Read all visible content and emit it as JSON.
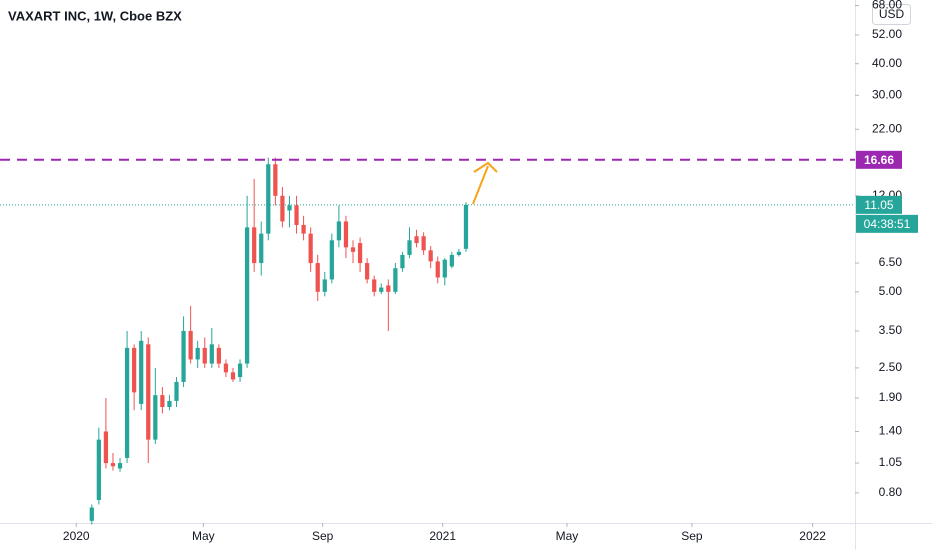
{
  "chart_data": {
    "type": "candlestick",
    "title": "VAXART INC, 1W, Cboe BZX",
    "currency": "USD",
    "log_scale": true,
    "grid": false,
    "up_color": "#26a69a",
    "down_color": "#ef5350",
    "x": [
      0,
      1,
      2,
      3,
      4,
      5,
      6,
      7,
      8,
      9,
      10,
      11,
      12,
      13,
      14,
      15,
      16,
      17,
      18,
      19,
      20,
      21,
      22,
      23,
      24,
      25,
      26,
      27,
      28,
      29,
      30,
      31,
      32,
      33,
      34,
      35,
      36,
      37,
      38,
      39,
      40,
      41,
      42,
      43,
      44,
      45,
      46,
      47,
      48,
      49,
      50,
      51,
      52,
      53
    ],
    "open": [
      0.62,
      0.75,
      1.4,
      1.05,
      1.0,
      1.1,
      3.0,
      1.8,
      3.1,
      1.3,
      1.95,
      1.75,
      1.85,
      2.2,
      3.5,
      2.7,
      3.0,
      2.6,
      3.0,
      2.6,
      2.4,
      2.3,
      2.6,
      9.0,
      6.5,
      8.5,
      16,
      12,
      10.5,
      11,
      9.2,
      8.5,
      6.5,
      5.0,
      5.6,
      8.0,
      9.5,
      7.5,
      7.8,
      6.5,
      5.6,
      5.0,
      5.3,
      5.0,
      6.2,
      7.0,
      8.3,
      8.3,
      7.3,
      6.6,
      5.7,
      6.3,
      7.0,
      7.4
    ],
    "high": [
      0.72,
      1.45,
      1.9,
      1.15,
      1.1,
      3.5,
      3.1,
      3.5,
      3.3,
      2.5,
      2.1,
      1.95,
      2.3,
      4.0,
      4.4,
      3.2,
      3.3,
      3.6,
      3.1,
      2.7,
      2.5,
      2.7,
      12,
      14,
      9.5,
      17,
      17,
      13,
      12,
      12,
      10,
      9,
      7,
      6,
      8.5,
      11,
      10,
      8,
      8.2,
      6.8,
      5.8,
      5.4,
      5.6,
      6.5,
      7.2,
      9,
      8.8,
      8.6,
      7.6,
      6.9,
      6.8,
      7.2,
      7.4,
      11.3
    ],
    "low": [
      0.6,
      0.72,
      1.0,
      0.98,
      0.97,
      1.05,
      1.7,
      1.7,
      1.05,
      1.25,
      1.65,
      1.7,
      1.75,
      2.1,
      2.6,
      2.5,
      2.5,
      2.5,
      2.5,
      2.3,
      2.2,
      2.2,
      2.5,
      6.0,
      5.8,
      8,
      11,
      9,
      9,
      8.5,
      8,
      6,
      4.6,
      4.8,
      5.4,
      7.5,
      6.8,
      6.5,
      6.0,
      5.4,
      4.8,
      4.9,
      3.5,
      4.9,
      6.0,
      6.8,
      7.5,
      7.0,
      6.2,
      5.4,
      5.3,
      6.2,
      6.9,
      7.2
    ],
    "close": [
      0.7,
      1.3,
      1.05,
      1.02,
      1.05,
      3.0,
      2.0,
      3.2,
      1.3,
      1.95,
      1.75,
      1.85,
      2.2,
      3.5,
      2.7,
      3.0,
      2.6,
      3.1,
      2.6,
      2.4,
      2.25,
      2.6,
      9.0,
      6.5,
      8.5,
      16,
      12,
      9.5,
      11,
      9.2,
      8.5,
      6.5,
      5.0,
      5.6,
      8.0,
      9.5,
      7.5,
      7.2,
      6.5,
      5.6,
      5.0,
      5.2,
      5.0,
      6.2,
      7.0,
      8.0,
      7.8,
      7.3,
      6.6,
      5.7,
      6.7,
      7.0,
      7.2,
      11.05
    ],
    "xlim": [
      -13.0,
      108.1
    ],
    "xticks": [
      {
        "value": -2.2,
        "label": "2020"
      },
      {
        "value": 15.8,
        "label": "May"
      },
      {
        "value": 32.7,
        "label": "Sep"
      },
      {
        "value": 49.7,
        "label": "2021"
      },
      {
        "value": 67.3,
        "label": "May"
      },
      {
        "value": 85.0,
        "label": "Sep"
      },
      {
        "value": 102.1,
        "label": "2022"
      }
    ],
    "ylim": [
      0.608,
      71.5
    ],
    "yticks": [
      {
        "value": 68,
        "label": "68.00"
      },
      {
        "value": 52,
        "label": "52.00"
      },
      {
        "value": 40,
        "label": "40.00"
      },
      {
        "value": 30,
        "label": "30.00"
      },
      {
        "value": 22,
        "label": "22.00"
      },
      {
        "value": 12,
        "label": "12.00"
      },
      {
        "value": 6.5,
        "label": "6.50"
      },
      {
        "value": 5,
        "label": "5.00"
      },
      {
        "value": 3.5,
        "label": "3.50"
      },
      {
        "value": 2.5,
        "label": "2.50"
      },
      {
        "value": 1.9,
        "label": "1.90"
      },
      {
        "value": 1.4,
        "label": "1.40"
      },
      {
        "value": 1.05,
        "label": "1.05"
      },
      {
        "value": 0.8,
        "label": "0.80"
      }
    ],
    "horizontal_line": {
      "value": 16.66,
      "color": "#9c27b0"
    },
    "last_price": {
      "value": 11.05,
      "countdown": "04:38:51",
      "color": "#26a69a"
    }
  }
}
